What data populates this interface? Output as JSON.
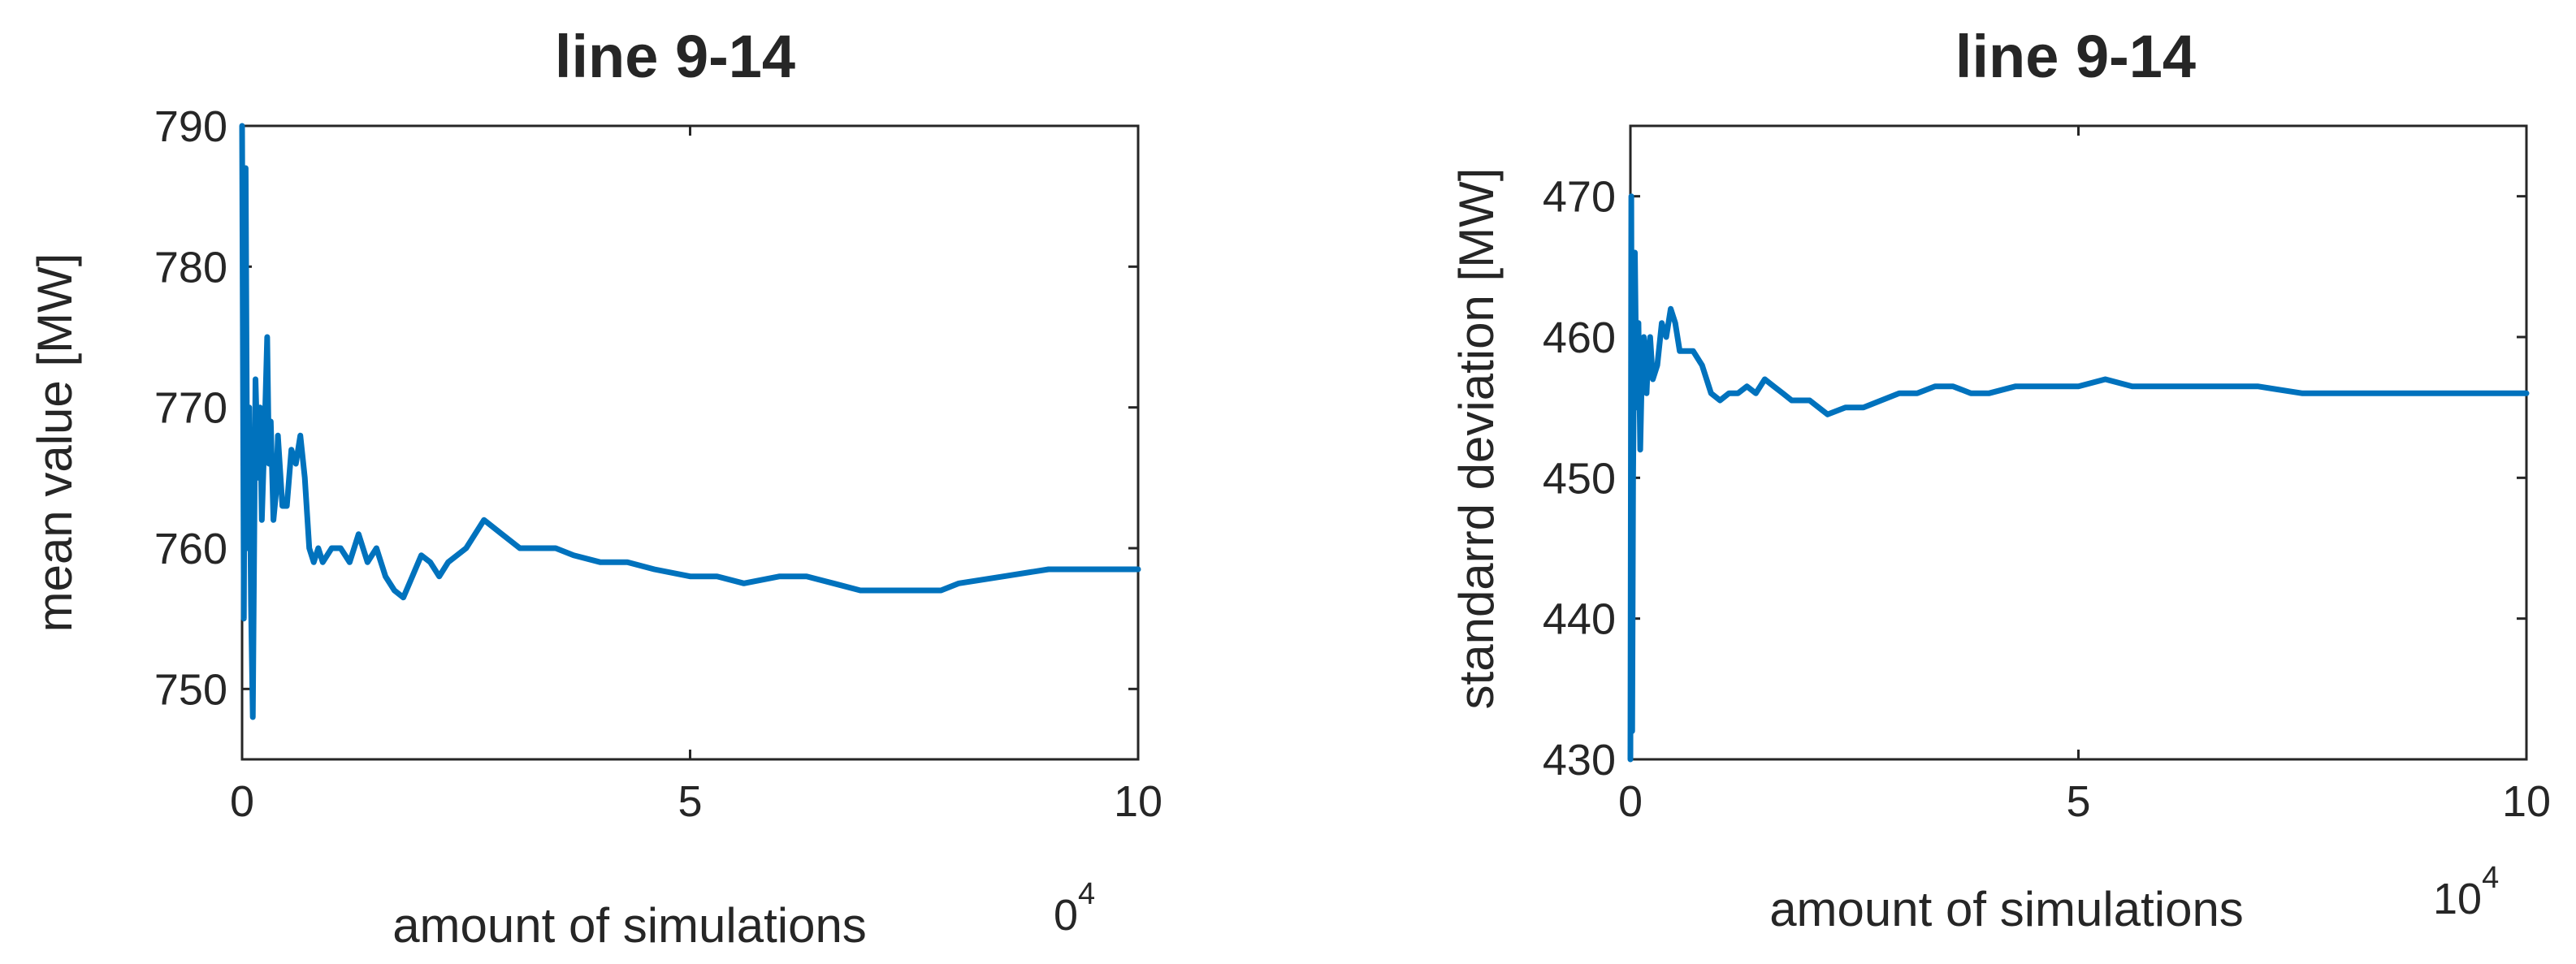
{
  "chart_data": [
    {
      "type": "line",
      "title": "line 9-14",
      "xlabel": "amount  of simulations",
      "ylabel": "mean value  [MW]",
      "x_exponent_label": "0",
      "x_exponent_power": "4",
      "xlim": [
        0,
        10
      ],
      "ylim": [
        745,
        790
      ],
      "xticks": [
        0,
        5,
        10
      ],
      "yticks": [
        750,
        760,
        770,
        780,
        790
      ],
      "grid": false,
      "series": [
        {
          "color": "#0072BD",
          "x": [
            0,
            0.02,
            0.04,
            0.06,
            0.08,
            0.1,
            0.12,
            0.15,
            0.18,
            0.2,
            0.22,
            0.25,
            0.28,
            0.3,
            0.32,
            0.35,
            0.38,
            0.4,
            0.45,
            0.5,
            0.55,
            0.6,
            0.65,
            0.7,
            0.75,
            0.8,
            0.85,
            0.9,
            1.0,
            1.1,
            1.2,
            1.3,
            1.4,
            1.5,
            1.6,
            1.7,
            1.8,
            1.9,
            2.0,
            2.1,
            2.2,
            2.3,
            2.5,
            2.7,
            2.9,
            3.1,
            3.3,
            3.5,
            3.7,
            4.0,
            4.3,
            4.6,
            5.0,
            5.3,
            5.6,
            6.0,
            6.3,
            6.6,
            6.9,
            7.2,
            7.5,
            7.8,
            8.0,
            8.5,
            9.0,
            9.5,
            10.0
          ],
          "y": [
            790,
            755,
            787,
            760,
            770,
            756,
            748,
            772,
            765,
            770,
            762,
            768,
            775,
            766,
            769,
            762,
            764,
            768,
            763,
            763,
            767,
            766,
            768,
            765,
            760,
            759,
            760,
            759,
            760,
            760,
            759,
            761,
            759,
            760,
            758,
            757,
            756.5,
            758,
            759.5,
            759,
            758,
            759,
            760,
            762,
            761,
            760,
            760,
            760,
            759.5,
            759,
            759,
            758.5,
            758,
            758,
            757.5,
            758,
            758,
            757.5,
            757,
            757,
            757,
            757,
            757.5,
            758,
            758.5,
            758.5,
            758.5
          ]
        }
      ]
    },
    {
      "type": "line",
      "title": "line 9-14",
      "xlabel": "amount  of simulations",
      "ylabel": "standarrd  deviation [MW]",
      "x_exponent_label": "10",
      "x_exponent_power": "4",
      "xlim": [
        0,
        10
      ],
      "ylim": [
        430,
        475
      ],
      "xticks": [
        0,
        5,
        10
      ],
      "yticks": [
        430,
        440,
        450,
        460,
        470
      ],
      "grid": false,
      "series": [
        {
          "color": "#0072BD",
          "x": [
            0,
            0.01,
            0.02,
            0.03,
            0.05,
            0.07,
            0.09,
            0.11,
            0.13,
            0.15,
            0.18,
            0.2,
            0.22,
            0.25,
            0.3,
            0.35,
            0.4,
            0.45,
            0.5,
            0.55,
            0.6,
            0.7,
            0.8,
            0.9,
            1.0,
            1.1,
            1.2,
            1.3,
            1.4,
            1.5,
            1.6,
            1.7,
            1.8,
            2.0,
            2.2,
            2.4,
            2.6,
            2.8,
            3.0,
            3.2,
            3.4,
            3.6,
            3.8,
            4.0,
            4.3,
            4.6,
            5.0,
            5.3,
            5.6,
            6.0,
            6.5,
            7.0,
            7.5,
            8.0,
            8.5,
            9.0,
            9.5,
            10.0
          ],
          "y": [
            430,
            470,
            432,
            450,
            466,
            455,
            461,
            452,
            458,
            460,
            456,
            459,
            460,
            457,
            458,
            461,
            460,
            462,
            461,
            459,
            459,
            459,
            458,
            456,
            455.5,
            456,
            456,
            456.5,
            456,
            457,
            456.5,
            456,
            455.5,
            455.5,
            454.5,
            455,
            455,
            455.5,
            456,
            456,
            456.5,
            456.5,
            456,
            456,
            456.5,
            456.5,
            456.5,
            457,
            456.5,
            456.5,
            456.5,
            456.5,
            456,
            456,
            456,
            456,
            456,
            456
          ]
        }
      ]
    }
  ]
}
